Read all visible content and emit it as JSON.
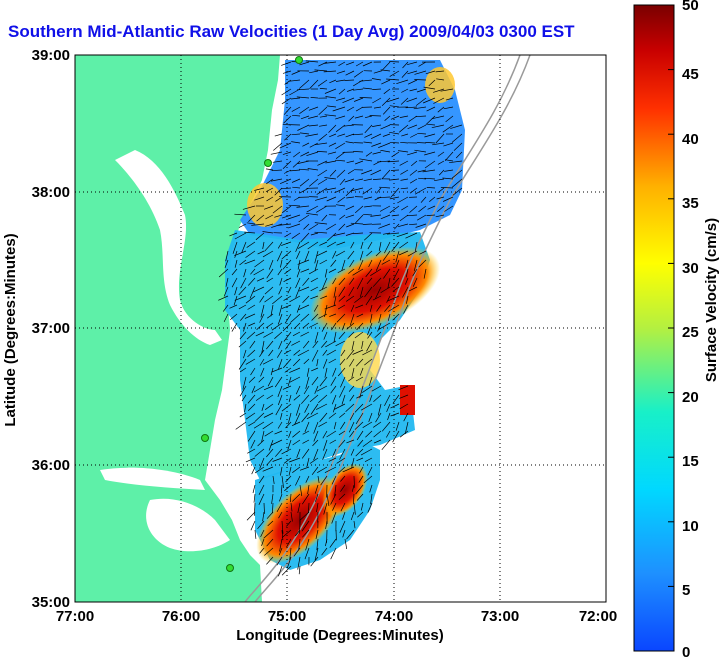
{
  "title": "Southern Mid-Atlantic Raw Velocities (1 Day Avg) 2009/04/03 0300 EST",
  "xlabel": "Longitude (Degrees:Minutes)",
  "ylabel": "Latitude (Degrees:Minutes)",
  "colorbar_label": "Surface Velocity (cm/s)",
  "x_ticks": [
    "77:00",
    "76:00",
    "75:00",
    "74:00",
    "73:00",
    "72:00"
  ],
  "y_ticks": [
    "39:00",
    "38:00",
    "37:00",
    "36:00",
    "35:00"
  ],
  "colorbar_ticks": [
    "50",
    "45",
    "40",
    "35",
    "30",
    "25",
    "20",
    "15",
    "10",
    "5",
    "0"
  ],
  "colors": {
    "land": "#5ef0a8",
    "title": "#1010e8",
    "station": "#33dd33"
  },
  "chart_data": {
    "type": "heatmap",
    "title": "Southern Mid-Atlantic Raw Velocities (1 Day Avg) 2009/04/03 0300 EST",
    "xlabel": "Longitude (Degrees:Minutes)",
    "ylabel": "Latitude (Degrees:Minutes)",
    "xlim": [
      -77,
      -72
    ],
    "ylim": [
      35,
      39
    ],
    "colorbar": {
      "label": "Surface Velocity (cm/s)",
      "range": [
        0,
        50
      ]
    },
    "grid": true
  }
}
